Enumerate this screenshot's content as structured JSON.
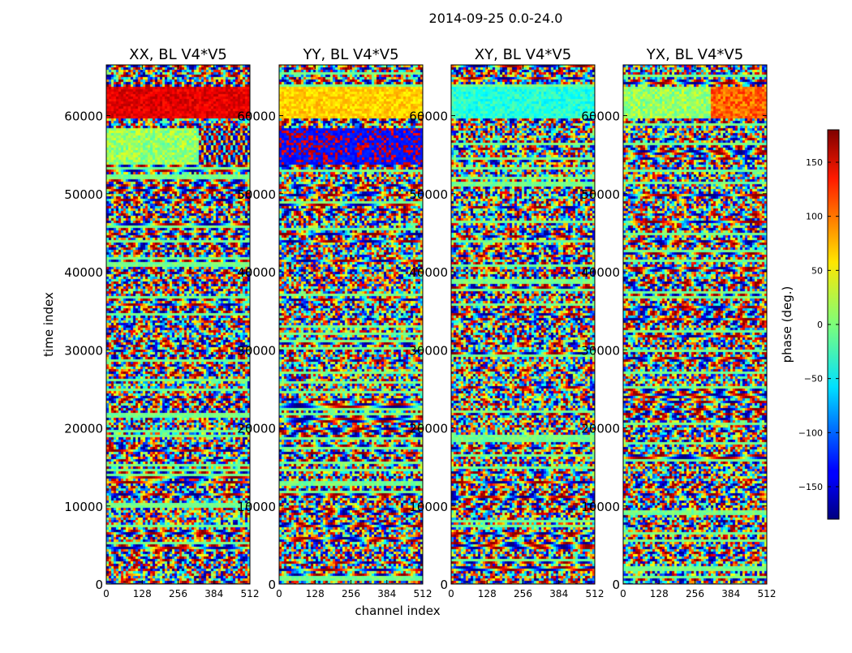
{
  "figure": {
    "title": "2014-09-25 0.0-24.0"
  },
  "chart_data": {
    "type": "heatmap",
    "title": "2014-09-25 0.0-24.0",
    "xlabel": "channel index",
    "ylabel": "time index",
    "xlim": [
      0,
      512
    ],
    "ylim": [
      0,
      66500
    ],
    "x_ticks": [
      "0",
      "128",
      "256",
      "384",
      "512"
    ],
    "x_tick_values": [
      0,
      128,
      256,
      384,
      512
    ],
    "y_ticks": [
      "0",
      "10000",
      "20000",
      "30000",
      "40000",
      "50000",
      "60000"
    ],
    "y_tick_values": [
      0,
      10000,
      20000,
      30000,
      40000,
      50000,
      60000
    ],
    "colormap": "jet",
    "colorbar": {
      "label": "phase (deg.)",
      "range": [
        -180,
        180
      ],
      "ticks": [
        "−150",
        "−100",
        "−50",
        "0",
        "50",
        "100",
        "150"
      ],
      "tick_values": [
        -150,
        -100,
        -50,
        0,
        50,
        100,
        150
      ]
    },
    "panels": [
      {
        "title": "XX, BL V4*V5"
      },
      {
        "title": "YY, BL V4*V5"
      },
      {
        "title": "XY, BL V4*V5"
      },
      {
        "title": "YX, BL V4*V5"
      }
    ]
  }
}
